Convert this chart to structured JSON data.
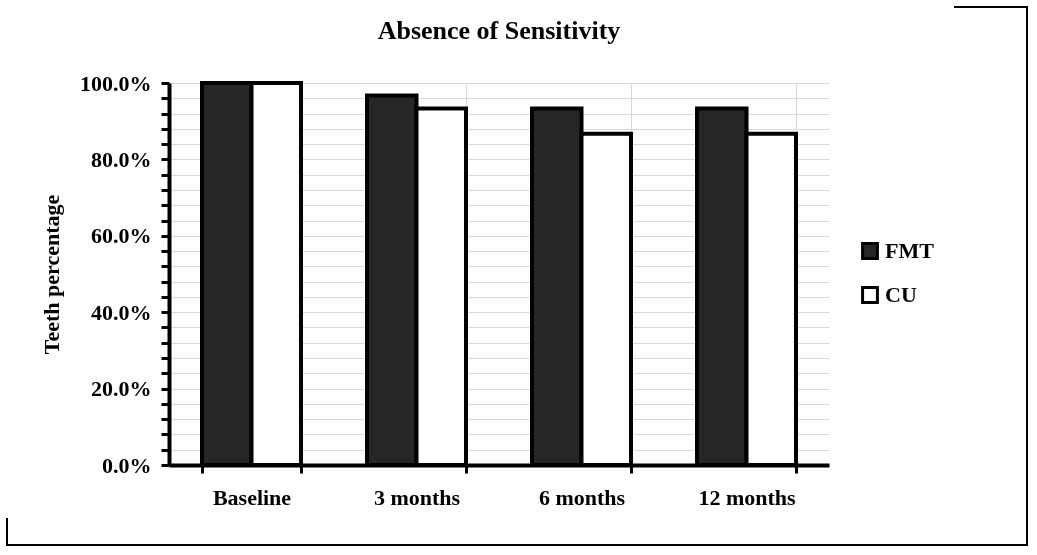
{
  "chart_data": {
    "type": "bar",
    "title": "Absence of Sensitivity",
    "ylabel": "Teeth percentage",
    "categories": [
      "Baseline",
      "3 months",
      "6 months",
      "12 months"
    ],
    "series": [
      {
        "name": "FMT",
        "color": "#262626",
        "values": [
          100,
          96.7,
          93.3,
          93.3
        ]
      },
      {
        "name": "CU",
        "color": "#ffffff",
        "values": [
          100,
          93.3,
          86.7,
          86.7
        ]
      }
    ],
    "ylim": [
      0,
      100
    ],
    "yticks": [
      {
        "value": 0,
        "label": "0.0%"
      },
      {
        "value": 4,
        "label": null
      },
      {
        "value": 8,
        "label": null
      },
      {
        "value": 12,
        "label": null
      },
      {
        "value": 16,
        "label": null
      },
      {
        "value": 20,
        "label": "20.0%"
      },
      {
        "value": 24,
        "label": null
      },
      {
        "value": 28,
        "label": null
      },
      {
        "value": 32,
        "label": null
      },
      {
        "value": 36,
        "label": null
      },
      {
        "value": 40,
        "label": "40.0%"
      },
      {
        "value": 44,
        "label": null
      },
      {
        "value": 48,
        "label": null
      },
      {
        "value": 52,
        "label": null
      },
      {
        "value": 56,
        "label": null
      },
      {
        "value": 60,
        "label": "60.0%"
      },
      {
        "value": 64,
        "label": null
      },
      {
        "value": 68,
        "label": null
      },
      {
        "value": 72,
        "label": null
      },
      {
        "value": 76,
        "label": null
      },
      {
        "value": 80,
        "label": "80.0%"
      },
      {
        "value": 84,
        "label": null
      },
      {
        "value": 88,
        "label": null
      },
      {
        "value": 92,
        "label": null
      },
      {
        "value": 96,
        "label": null
      },
      {
        "value": 100,
        "label": "100.0%"
      }
    ],
    "grid": true,
    "legend": "right"
  }
}
